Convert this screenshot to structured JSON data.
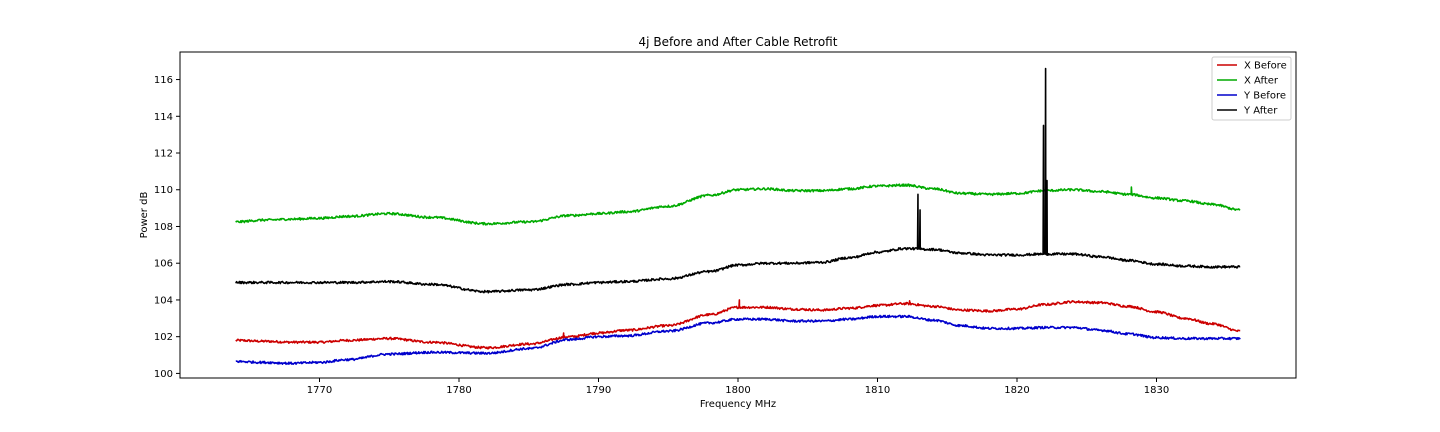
{
  "chart_data": {
    "type": "line",
    "title": "4j Before and After Cable Retrofit",
    "xlabel": "Frequency MHz",
    "ylabel": "Power dB",
    "xlim": [
      1760,
      1840
    ],
    "ylim": [
      99.75,
      117.5
    ],
    "xticks": [
      1770,
      1780,
      1790,
      1800,
      1810,
      1820,
      1830
    ],
    "yticks": [
      100,
      102,
      104,
      106,
      108,
      110,
      112,
      114,
      116
    ],
    "grid": false,
    "legend_position": "top-right",
    "series": [
      {
        "name": "X Before",
        "color": "#cc0000",
        "x": [
          1764,
          1766,
          1768,
          1770,
          1772,
          1775,
          1778,
          1782,
          1785,
          1788,
          1790,
          1792,
          1795,
          1798,
          1800,
          1802,
          1804,
          1806,
          1808,
          1810,
          1812,
          1814,
          1816,
          1818,
          1820,
          1822,
          1824,
          1826,
          1828,
          1830,
          1832,
          1834,
          1836
        ],
        "y": [
          101.8,
          101.75,
          101.7,
          101.7,
          101.8,
          101.9,
          101.7,
          101.4,
          101.6,
          102.0,
          102.2,
          102.35,
          102.6,
          103.2,
          103.6,
          103.6,
          103.5,
          103.45,
          103.55,
          103.7,
          103.8,
          103.65,
          103.45,
          103.4,
          103.5,
          103.75,
          103.9,
          103.85,
          103.65,
          103.35,
          103.0,
          102.7,
          102.3
        ],
        "spikes": [
          {
            "x": 1800.1,
            "y": 104.0
          },
          {
            "x": 1812.3,
            "y": 103.95
          },
          {
            "x": 1787.5,
            "y": 102.2
          }
        ]
      },
      {
        "name": "X After",
        "color": "#00aa00",
        "x": [
          1764,
          1766,
          1768,
          1770,
          1772,
          1775,
          1778,
          1782,
          1785,
          1788,
          1790,
          1792,
          1795,
          1798,
          1800,
          1802,
          1804,
          1806,
          1808,
          1810,
          1812,
          1814,
          1816,
          1818,
          1820,
          1822,
          1824,
          1826,
          1828,
          1830,
          1832,
          1834,
          1836
        ],
        "y": [
          108.25,
          108.35,
          108.4,
          108.45,
          108.55,
          108.7,
          108.5,
          108.15,
          108.25,
          108.6,
          108.7,
          108.8,
          109.1,
          109.7,
          110.0,
          110.05,
          109.95,
          109.95,
          110.05,
          110.2,
          110.25,
          110.05,
          109.8,
          109.75,
          109.8,
          109.95,
          110.0,
          109.9,
          109.75,
          109.55,
          109.4,
          109.2,
          108.9
        ],
        "spikes": [
          {
            "x": 1828.2,
            "y": 110.15
          }
        ]
      },
      {
        "name": "Y Before",
        "color": "#0000cc",
        "x": [
          1764,
          1766,
          1768,
          1770,
          1772,
          1775,
          1778,
          1782,
          1785,
          1788,
          1790,
          1792,
          1795,
          1798,
          1800,
          1802,
          1804,
          1806,
          1808,
          1810,
          1812,
          1814,
          1816,
          1818,
          1820,
          1822,
          1824,
          1826,
          1828,
          1830,
          1832,
          1834,
          1836
        ],
        "y": [
          100.65,
          100.6,
          100.55,
          100.6,
          100.75,
          101.05,
          101.15,
          101.1,
          101.35,
          101.85,
          102.0,
          102.05,
          102.3,
          102.75,
          102.95,
          102.95,
          102.85,
          102.85,
          102.95,
          103.1,
          103.1,
          102.9,
          102.6,
          102.45,
          102.45,
          102.5,
          102.5,
          102.35,
          102.15,
          101.95,
          101.9,
          101.9,
          101.9
        ],
        "spikes": []
      },
      {
        "name": "Y After",
        "color": "#000000",
        "x": [
          1764,
          1766,
          1768,
          1770,
          1772,
          1775,
          1778,
          1782,
          1785,
          1788,
          1790,
          1792,
          1795,
          1798,
          1800,
          1802,
          1804,
          1806,
          1808,
          1810,
          1812,
          1814,
          1816,
          1818,
          1820,
          1822,
          1824,
          1826,
          1828,
          1830,
          1832,
          1834,
          1836
        ],
        "y": [
          104.95,
          104.95,
          104.95,
          104.95,
          104.95,
          105.0,
          104.85,
          104.45,
          104.55,
          104.85,
          104.95,
          105.0,
          105.15,
          105.55,
          105.9,
          106.0,
          106.0,
          106.05,
          106.3,
          106.6,
          106.8,
          106.75,
          106.55,
          106.45,
          106.45,
          106.5,
          106.5,
          106.35,
          106.15,
          105.95,
          105.85,
          105.8,
          105.8
        ],
        "spikes": [
          {
            "x": 1812.9,
            "y": 109.75
          },
          {
            "x": 1813.05,
            "y": 108.9
          },
          {
            "x": 1821.9,
            "y": 113.5
          },
          {
            "x": 1822.05,
            "y": 116.6
          },
          {
            "x": 1822.15,
            "y": 110.5
          }
        ]
      }
    ]
  }
}
